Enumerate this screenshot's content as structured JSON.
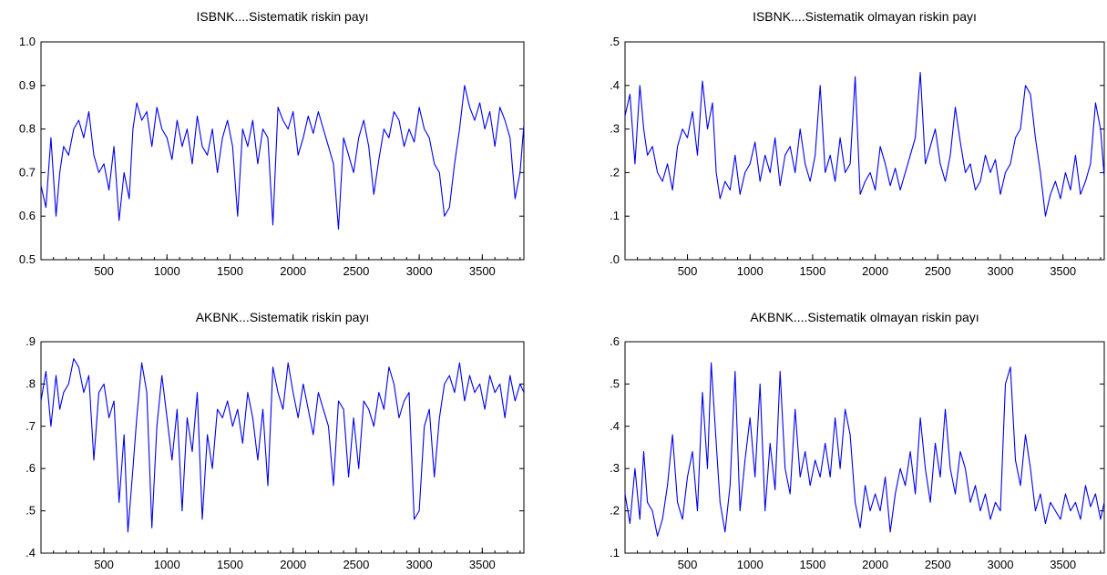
{
  "chart_data": [
    {
      "type": "line",
      "title": "ISBNK....Sistematik  riskin payı",
      "xlim": [
        1,
        3830
      ],
      "ylim": [
        0.5,
        1.0
      ],
      "x_ticks": [
        500,
        1000,
        1500,
        2000,
        2500,
        3000,
        3500
      ],
      "y_ticks": [
        0.5,
        0.6,
        0.7,
        0.8,
        0.9,
        1.0
      ],
      "x_tick_labels": [
        "500",
        "1000",
        "1500",
        "2000",
        "2500",
        "3000",
        "3500"
      ],
      "y_tick_labels": [
        "0.5",
        "0.6",
        "0.7",
        "0.8",
        "0.9",
        "1.0"
      ],
      "series": [
        {
          "color": "#0000ee",
          "x": [
            1,
            40,
            80,
            120,
            150,
            180,
            220,
            260,
            300,
            340,
            380,
            420,
            460,
            500,
            540,
            580,
            620,
            660,
            700,
            730,
            760,
            800,
            840,
            880,
            920,
            960,
            1000,
            1040,
            1080,
            1120,
            1160,
            1200,
            1240,
            1280,
            1320,
            1360,
            1400,
            1440,
            1480,
            1520,
            1560,
            1600,
            1640,
            1680,
            1720,
            1760,
            1800,
            1840,
            1880,
            1920,
            1960,
            2000,
            2040,
            2080,
            2120,
            2160,
            2200,
            2240,
            2280,
            2320,
            2360,
            2400,
            2440,
            2480,
            2520,
            2560,
            2600,
            2640,
            2680,
            2720,
            2760,
            2800,
            2840,
            2880,
            2920,
            2960,
            3000,
            3040,
            3080,
            3120,
            3160,
            3200,
            3240,
            3280,
            3320,
            3360,
            3400,
            3440,
            3480,
            3520,
            3560,
            3600,
            3640,
            3680,
            3720,
            3760,
            3800,
            3830
          ],
          "y": [
            0.67,
            0.62,
            0.78,
            0.6,
            0.7,
            0.76,
            0.74,
            0.8,
            0.82,
            0.78,
            0.84,
            0.74,
            0.7,
            0.72,
            0.66,
            0.76,
            0.59,
            0.7,
            0.64,
            0.8,
            0.86,
            0.82,
            0.84,
            0.76,
            0.85,
            0.8,
            0.78,
            0.73,
            0.82,
            0.76,
            0.8,
            0.72,
            0.83,
            0.76,
            0.74,
            0.8,
            0.7,
            0.78,
            0.82,
            0.76,
            0.6,
            0.8,
            0.76,
            0.82,
            0.72,
            0.8,
            0.78,
            0.58,
            0.85,
            0.82,
            0.8,
            0.84,
            0.74,
            0.78,
            0.83,
            0.79,
            0.84,
            0.8,
            0.76,
            0.72,
            0.57,
            0.78,
            0.74,
            0.7,
            0.78,
            0.82,
            0.76,
            0.65,
            0.73,
            0.8,
            0.78,
            0.84,
            0.82,
            0.76,
            0.8,
            0.77,
            0.85,
            0.8,
            0.78,
            0.72,
            0.7,
            0.6,
            0.62,
            0.72,
            0.8,
            0.9,
            0.85,
            0.82,
            0.86,
            0.8,
            0.84,
            0.76,
            0.85,
            0.82,
            0.78,
            0.64,
            0.7,
            0.81
          ]
        }
      ]
    },
    {
      "type": "line",
      "title": "ISBNK....Sistematik olmayan riskin payı",
      "xlim": [
        1,
        3830
      ],
      "ylim": [
        0.0,
        0.5
      ],
      "x_ticks": [
        500,
        1000,
        1500,
        2000,
        2500,
        3000,
        3500
      ],
      "y_ticks": [
        0.0,
        0.1,
        0.2,
        0.3,
        0.4,
        0.5
      ],
      "x_tick_labels": [
        "500",
        "1000",
        "1500",
        "2000",
        "2500",
        "3000",
        "3500"
      ],
      "y_tick_labels": [
        ".0",
        ".1",
        ".2",
        ".3",
        ".4",
        ".5"
      ],
      "series": [
        {
          "color": "#0000ee",
          "x": [
            1,
            40,
            80,
            120,
            150,
            180,
            220,
            260,
            300,
            340,
            380,
            420,
            460,
            500,
            540,
            580,
            620,
            660,
            700,
            730,
            760,
            800,
            840,
            880,
            920,
            960,
            1000,
            1040,
            1080,
            1120,
            1160,
            1200,
            1240,
            1280,
            1320,
            1360,
            1400,
            1440,
            1480,
            1520,
            1560,
            1600,
            1640,
            1680,
            1720,
            1760,
            1800,
            1840,
            1880,
            1920,
            1960,
            2000,
            2040,
            2080,
            2120,
            2160,
            2200,
            2240,
            2280,
            2320,
            2360,
            2400,
            2440,
            2480,
            2520,
            2560,
            2600,
            2640,
            2680,
            2720,
            2760,
            2800,
            2840,
            2880,
            2920,
            2960,
            3000,
            3040,
            3080,
            3120,
            3160,
            3200,
            3240,
            3280,
            3320,
            3360,
            3400,
            3440,
            3480,
            3520,
            3560,
            3600,
            3640,
            3680,
            3720,
            3760,
            3800,
            3830
          ],
          "y": [
            0.33,
            0.38,
            0.22,
            0.4,
            0.3,
            0.24,
            0.26,
            0.2,
            0.18,
            0.22,
            0.16,
            0.26,
            0.3,
            0.28,
            0.34,
            0.24,
            0.41,
            0.3,
            0.36,
            0.2,
            0.14,
            0.18,
            0.16,
            0.24,
            0.15,
            0.2,
            0.22,
            0.27,
            0.18,
            0.24,
            0.2,
            0.28,
            0.17,
            0.24,
            0.26,
            0.2,
            0.3,
            0.22,
            0.18,
            0.24,
            0.4,
            0.2,
            0.24,
            0.18,
            0.28,
            0.2,
            0.22,
            0.42,
            0.15,
            0.18,
            0.2,
            0.16,
            0.26,
            0.22,
            0.17,
            0.21,
            0.16,
            0.2,
            0.24,
            0.28,
            0.43,
            0.22,
            0.26,
            0.3,
            0.22,
            0.18,
            0.24,
            0.35,
            0.27,
            0.2,
            0.22,
            0.16,
            0.18,
            0.24,
            0.2,
            0.23,
            0.15,
            0.2,
            0.22,
            0.28,
            0.3,
            0.4,
            0.38,
            0.28,
            0.2,
            0.1,
            0.15,
            0.18,
            0.14,
            0.2,
            0.16,
            0.24,
            0.15,
            0.18,
            0.22,
            0.36,
            0.3,
            0.19
          ]
        }
      ]
    },
    {
      "type": "line",
      "title": "AKBNK...Sistematik riskin payı",
      "xlim": [
        1,
        3830
      ],
      "ylim": [
        0.4,
        0.9
      ],
      "x_ticks": [
        500,
        1000,
        1500,
        2000,
        2500,
        3000,
        3500
      ],
      "y_ticks": [
        0.4,
        0.5,
        0.6,
        0.7,
        0.8,
        0.9
      ],
      "x_tick_labels": [
        "500",
        "1000",
        "1500",
        "2000",
        "2500",
        "3000",
        "3500"
      ],
      "y_tick_labels": [
        ".4",
        ".5",
        ".6",
        ".7",
        ".8",
        ".9"
      ],
      "series": [
        {
          "color": "#0000ee",
          "x": [
            1,
            40,
            80,
            120,
            150,
            180,
            220,
            260,
            300,
            340,
            380,
            420,
            460,
            500,
            540,
            580,
            620,
            660,
            690,
            730,
            760,
            800,
            840,
            880,
            920,
            960,
            1000,
            1040,
            1080,
            1120,
            1160,
            1200,
            1240,
            1280,
            1320,
            1360,
            1400,
            1440,
            1480,
            1520,
            1560,
            1600,
            1640,
            1680,
            1720,
            1760,
            1800,
            1840,
            1880,
            1920,
            1960,
            2000,
            2040,
            2080,
            2120,
            2160,
            2200,
            2240,
            2280,
            2320,
            2360,
            2400,
            2440,
            2480,
            2520,
            2560,
            2600,
            2640,
            2680,
            2720,
            2760,
            2800,
            2840,
            2880,
            2920,
            2960,
            3000,
            3040,
            3080,
            3120,
            3160,
            3200,
            3240,
            3280,
            3320,
            3360,
            3400,
            3440,
            3480,
            3520,
            3560,
            3600,
            3640,
            3680,
            3720,
            3760,
            3800,
            3830
          ],
          "y": [
            0.76,
            0.83,
            0.7,
            0.82,
            0.74,
            0.78,
            0.8,
            0.86,
            0.84,
            0.78,
            0.82,
            0.62,
            0.78,
            0.8,
            0.72,
            0.76,
            0.52,
            0.68,
            0.45,
            0.6,
            0.72,
            0.85,
            0.78,
            0.46,
            0.7,
            0.82,
            0.72,
            0.62,
            0.74,
            0.5,
            0.72,
            0.64,
            0.78,
            0.48,
            0.68,
            0.6,
            0.74,
            0.72,
            0.76,
            0.7,
            0.74,
            0.66,
            0.78,
            0.72,
            0.62,
            0.74,
            0.56,
            0.84,
            0.78,
            0.74,
            0.85,
            0.78,
            0.72,
            0.8,
            0.74,
            0.68,
            0.78,
            0.74,
            0.7,
            0.56,
            0.76,
            0.74,
            0.58,
            0.72,
            0.6,
            0.76,
            0.74,
            0.7,
            0.78,
            0.74,
            0.84,
            0.8,
            0.72,
            0.76,
            0.78,
            0.48,
            0.5,
            0.7,
            0.74,
            0.58,
            0.72,
            0.8,
            0.82,
            0.78,
            0.85,
            0.76,
            0.82,
            0.78,
            0.8,
            0.74,
            0.82,
            0.78,
            0.8,
            0.72,
            0.82,
            0.76,
            0.8,
            0.78
          ]
        }
      ]
    },
    {
      "type": "line",
      "title": "AKBNK....Sistematik olmayan riskin payı",
      "xlim": [
        1,
        3830
      ],
      "ylim": [
        0.1,
        0.6
      ],
      "x_ticks": [
        500,
        1000,
        1500,
        2000,
        2500,
        3000,
        3500
      ],
      "y_ticks": [
        0.1,
        0.2,
        0.3,
        0.4,
        0.5,
        0.6
      ],
      "x_tick_labels": [
        "500",
        "1000",
        "1500",
        "2000",
        "2500",
        "3000",
        "3500"
      ],
      "y_tick_labels": [
        ".1",
        ".2",
        ".3",
        ".4",
        ".5",
        ".6"
      ],
      "series": [
        {
          "color": "#0000ee",
          "x": [
            1,
            40,
            80,
            120,
            150,
            180,
            220,
            260,
            300,
            340,
            380,
            420,
            460,
            500,
            540,
            580,
            620,
            660,
            690,
            730,
            760,
            800,
            840,
            880,
            920,
            960,
            1000,
            1040,
            1080,
            1120,
            1160,
            1200,
            1240,
            1280,
            1320,
            1360,
            1400,
            1440,
            1480,
            1520,
            1560,
            1600,
            1640,
            1680,
            1720,
            1760,
            1800,
            1840,
            1880,
            1920,
            1960,
            2000,
            2040,
            2080,
            2120,
            2160,
            2200,
            2240,
            2280,
            2320,
            2360,
            2400,
            2440,
            2480,
            2520,
            2560,
            2600,
            2640,
            2680,
            2720,
            2760,
            2800,
            2840,
            2880,
            2920,
            2960,
            3000,
            3040,
            3080,
            3120,
            3160,
            3200,
            3240,
            3280,
            3320,
            3360,
            3400,
            3440,
            3480,
            3520,
            3560,
            3600,
            3640,
            3680,
            3720,
            3760,
            3800,
            3830
          ],
          "y": [
            0.24,
            0.17,
            0.3,
            0.18,
            0.34,
            0.22,
            0.2,
            0.14,
            0.18,
            0.26,
            0.38,
            0.22,
            0.18,
            0.28,
            0.34,
            0.2,
            0.48,
            0.3,
            0.55,
            0.36,
            0.22,
            0.15,
            0.26,
            0.53,
            0.2,
            0.32,
            0.42,
            0.28,
            0.5,
            0.2,
            0.36,
            0.25,
            0.53,
            0.3,
            0.24,
            0.44,
            0.28,
            0.34,
            0.26,
            0.32,
            0.28,
            0.36,
            0.28,
            0.42,
            0.3,
            0.44,
            0.38,
            0.22,
            0.16,
            0.26,
            0.2,
            0.24,
            0.2,
            0.28,
            0.15,
            0.24,
            0.3,
            0.26,
            0.34,
            0.24,
            0.42,
            0.3,
            0.22,
            0.36,
            0.28,
            0.44,
            0.3,
            0.24,
            0.34,
            0.3,
            0.22,
            0.26,
            0.2,
            0.24,
            0.18,
            0.22,
            0.2,
            0.5,
            0.54,
            0.32,
            0.26,
            0.38,
            0.3,
            0.2,
            0.24,
            0.17,
            0.22,
            0.2,
            0.18,
            0.24,
            0.2,
            0.22,
            0.18,
            0.26,
            0.21,
            0.24,
            0.18,
            0.22
          ]
        }
      ]
    }
  ]
}
